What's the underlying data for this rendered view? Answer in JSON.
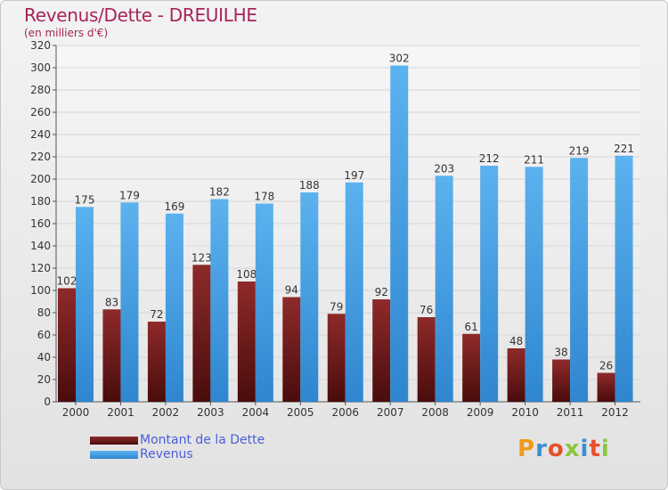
{
  "header": {
    "title": "Revenus/Dette - DREUILHE",
    "subtitle": "(en milliers d'€)"
  },
  "legend": {
    "debt_label": "Montant de la Dette",
    "revenue_label": "Revenus"
  },
  "colors": {
    "debt": "#7a1c1c",
    "revenue": "#4da6e6",
    "axis_text": "#333333",
    "grid": "#d6d6d6"
  },
  "logo": {
    "text": "Proxiti"
  },
  "chart_data": {
    "type": "bar",
    "categories": [
      "2000",
      "2001",
      "2002",
      "2003",
      "2004",
      "2005",
      "2006",
      "2007",
      "2008",
      "2009",
      "2010",
      "2011",
      "2012"
    ],
    "series": [
      {
        "name": "Montant de la Dette",
        "values": [
          102,
          83,
          72,
          123,
          108,
          94,
          79,
          92,
          76,
          61,
          48,
          38,
          26
        ]
      },
      {
        "name": "Revenus",
        "values": [
          175,
          179,
          169,
          182,
          178,
          188,
          197,
          302,
          203,
          212,
          211,
          219,
          221
        ]
      }
    ],
    "title": "Revenus/Dette - DREUILHE",
    "ylabel": "(en milliers d'€)",
    "ylim": [
      0,
      320
    ],
    "yticks": [
      0,
      20,
      40,
      60,
      80,
      100,
      120,
      140,
      160,
      180,
      200,
      220,
      240,
      260,
      280,
      300,
      320
    ],
    "grid": true,
    "legend_position": "bottom-left"
  }
}
